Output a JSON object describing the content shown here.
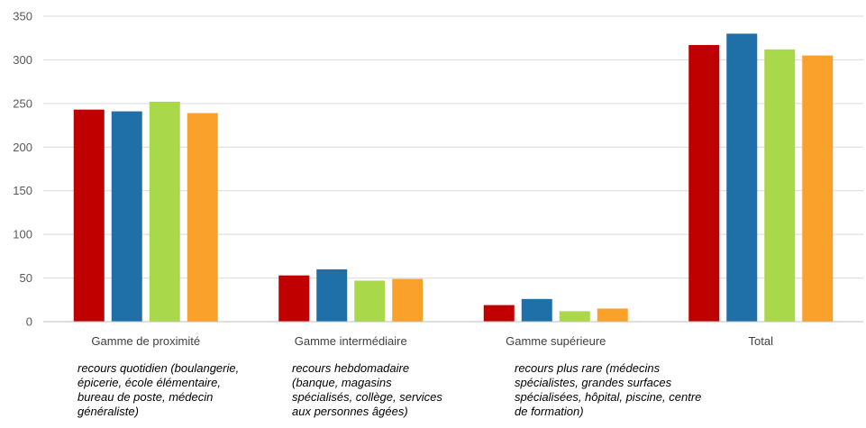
{
  "chart_data": {
    "type": "bar",
    "title": "",
    "xlabel": "",
    "ylabel": "",
    "ylim": [
      0,
      350
    ],
    "yticks": [
      0,
      50,
      100,
      150,
      200,
      250,
      300,
      350
    ],
    "grid": true,
    "legend": "none",
    "categories": [
      "Gamme de proximité",
      "Gamme intermédiaire",
      "Gamme supérieure",
      "Total"
    ],
    "series": [
      {
        "color": "#c00000",
        "values": [
          243,
          53,
          19,
          317
        ]
      },
      {
        "color": "#1f6fa8",
        "values": [
          241,
          60,
          26,
          330
        ]
      },
      {
        "color": "#a9d84a",
        "values": [
          252,
          47,
          12,
          312
        ]
      },
      {
        "color": "#f9a12a",
        "values": [
          239,
          49,
          15,
          305
        ]
      }
    ],
    "annotations": [
      [
        "recours quotidien (boulangerie,",
        "épicerie, école élémentaire,",
        "bureau de poste, médecin",
        "généraliste)"
      ],
      [
        "recours hebdomadaire",
        "(banque, magasins",
        "spécialisés, collège, services",
        "aux personnes âgées)"
      ],
      [
        "recours plus rare (médecins",
        "spécialistes, grandes surfaces",
        "spécialisées, hôpital, piscine, centre",
        "de formation)"
      ]
    ]
  }
}
